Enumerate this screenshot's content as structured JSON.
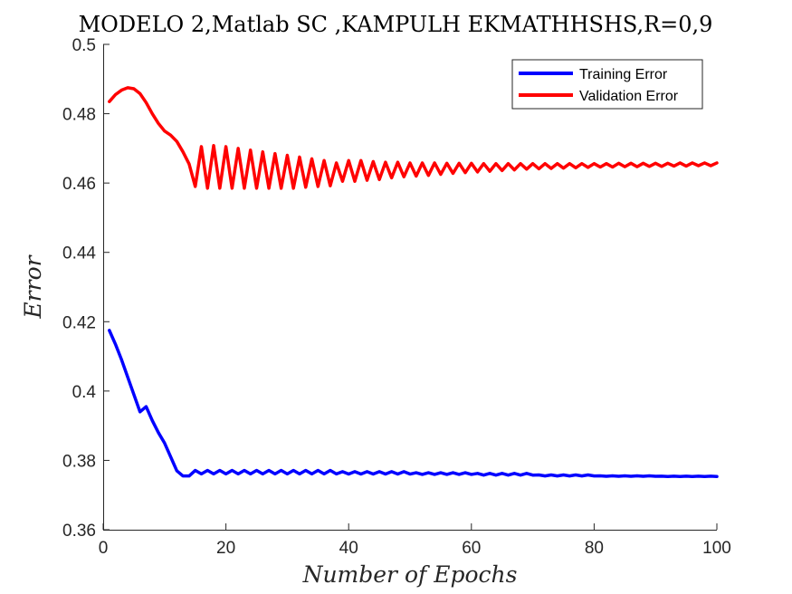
{
  "chart_data": {
    "type": "line",
    "title": "MODELO 2,Matlab SC ,KAMPULH EKMATHHSHS,R=0,9",
    "xlabel": "Number of Epochs",
    "ylabel": "Error",
    "xlim": [
      0,
      100
    ],
    "ylim": [
      0.36,
      0.5
    ],
    "xticks": [
      0,
      20,
      40,
      60,
      80,
      100
    ],
    "yticks": [
      0.36,
      0.38,
      0.4,
      0.42,
      0.44,
      0.46,
      0.48,
      0.5
    ],
    "xtick_labels": [
      "0",
      "20",
      "40",
      "60",
      "80",
      "100"
    ],
    "ytick_labels": [
      "0.36",
      "0.38",
      "0.4",
      "0.42",
      "0.44",
      "0.46",
      "0.48",
      "0.5"
    ],
    "grid": false,
    "legend_position": "top-right",
    "x": [
      1,
      2,
      3,
      4,
      5,
      6,
      7,
      8,
      9,
      10,
      11,
      12,
      13,
      14,
      15,
      16,
      17,
      18,
      19,
      20,
      21,
      22,
      23,
      24,
      25,
      26,
      27,
      28,
      29,
      30,
      31,
      32,
      33,
      34,
      35,
      36,
      37,
      38,
      39,
      40,
      41,
      42,
      43,
      44,
      45,
      46,
      47,
      48,
      49,
      50,
      51,
      52,
      53,
      54,
      55,
      56,
      57,
      58,
      59,
      60,
      61,
      62,
      63,
      64,
      65,
      66,
      67,
      68,
      69,
      70,
      71,
      72,
      73,
      74,
      75,
      76,
      77,
      78,
      79,
      80,
      81,
      82,
      83,
      84,
      85,
      86,
      87,
      88,
      89,
      90,
      91,
      92,
      93,
      94,
      95,
      96,
      97,
      98,
      99,
      100
    ],
    "series": [
      {
        "name": "Training Error",
        "color": "#0000ff",
        "values": [
          0.4175,
          0.4135,
          0.409,
          0.404,
          0.399,
          0.394,
          0.3955,
          0.3915,
          0.388,
          0.385,
          0.381,
          0.377,
          0.3755,
          0.3755,
          0.3771,
          0.3761,
          0.3771,
          0.3761,
          0.3771,
          0.3761,
          0.3771,
          0.3761,
          0.3771,
          0.3761,
          0.3771,
          0.3761,
          0.3771,
          0.3761,
          0.3771,
          0.3761,
          0.3771,
          0.3761,
          0.3771,
          0.3761,
          0.3771,
          0.3761,
          0.3771,
          0.3761,
          0.37675,
          0.37605,
          0.37675,
          0.37605,
          0.37675,
          0.37605,
          0.37675,
          0.37605,
          0.37675,
          0.37605,
          0.37675,
          0.37605,
          0.37645,
          0.37595,
          0.37645,
          0.37595,
          0.37645,
          0.37595,
          0.37645,
          0.37595,
          0.37645,
          0.37595,
          0.37625,
          0.37575,
          0.37625,
          0.37575,
          0.37625,
          0.37575,
          0.37625,
          0.37575,
          0.37625,
          0.37575,
          0.3758,
          0.3755,
          0.3758,
          0.3755,
          0.3758,
          0.3755,
          0.3758,
          0.3755,
          0.3758,
          0.3755,
          0.37555,
          0.3754,
          0.37555,
          0.3754,
          0.37555,
          0.3754,
          0.37555,
          0.3754,
          0.37555,
          0.3754,
          0.37545,
          0.37535,
          0.37545,
          0.37535,
          0.37545,
          0.37535,
          0.37545,
          0.37535,
          0.37545,
          0.37535
        ]
      },
      {
        "name": "Validation Error",
        "color": "#ff0000",
        "values": [
          0.4835,
          0.4855,
          0.4868,
          0.4875,
          0.4872,
          0.4858,
          0.4832,
          0.48,
          0.4772,
          0.475,
          0.4738,
          0.472,
          0.469,
          0.4655,
          0.459,
          0.4705,
          0.4585,
          0.4708,
          0.4585,
          0.4705,
          0.4585,
          0.47,
          0.4585,
          0.4695,
          0.4585,
          0.469,
          0.4585,
          0.4685,
          0.4585,
          0.468,
          0.4585,
          0.4675,
          0.4588,
          0.467,
          0.459,
          0.4665,
          0.4592,
          0.4658,
          0.4605,
          0.4665,
          0.4605,
          0.4665,
          0.4608,
          0.4662,
          0.461,
          0.466,
          0.4615,
          0.466,
          0.4618,
          0.4658,
          0.462,
          0.4658,
          0.4622,
          0.4658,
          0.4625,
          0.4657,
          0.4628,
          0.4657,
          0.463,
          0.4657,
          0.4632,
          0.4656,
          0.4634,
          0.4656,
          0.4636,
          0.4656,
          0.4638,
          0.4656,
          0.464,
          0.4656,
          0.4641,
          0.4656,
          0.4642,
          0.4656,
          0.4643,
          0.4656,
          0.4644,
          0.4656,
          0.4645,
          0.4656,
          0.4646,
          0.4656,
          0.4646,
          0.4657,
          0.4647,
          0.4657,
          0.4647,
          0.4657,
          0.4648,
          0.4657,
          0.4648,
          0.4657,
          0.4649,
          0.4658,
          0.4649,
          0.4658,
          0.465,
          0.4658,
          0.465,
          0.4658
        ]
      }
    ]
  }
}
